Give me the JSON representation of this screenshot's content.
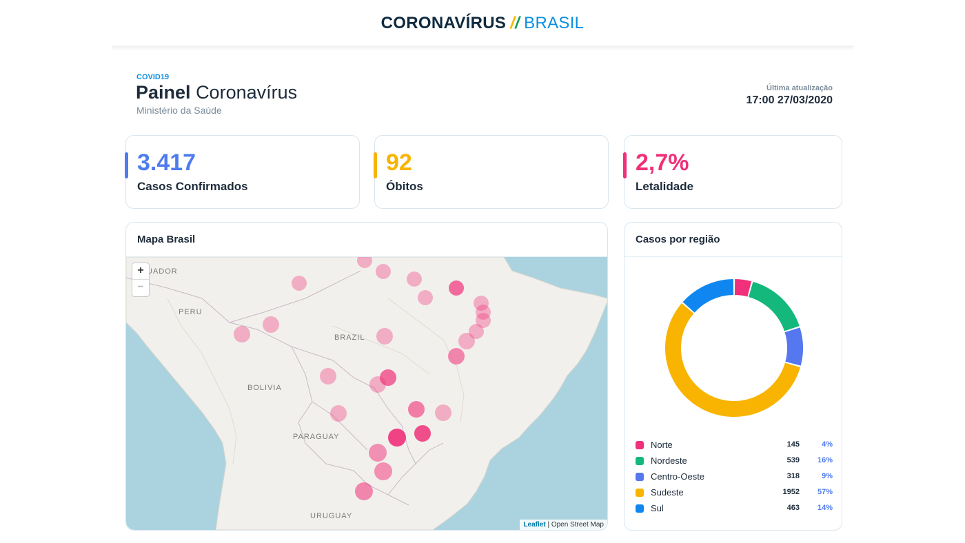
{
  "topbar": {
    "brand_main": "CORONAVÍRUS",
    "brand_region": "BRASIL"
  },
  "header": {
    "tag": "COVID19",
    "title_bold": "Painel",
    "title_rest": "Coronavírus",
    "subtitle": "Ministério da Saúde",
    "update_label": "Última atualização",
    "update_value": "17:00 27/03/2020"
  },
  "stats": [
    {
      "value": "3.417",
      "label": "Casos Confirmados",
      "color": "#4e7bee"
    },
    {
      "value": "92",
      "label": "Óbitos",
      "color": "#f8b400"
    },
    {
      "value": "2,7%",
      "label": "Letalidade",
      "color": "#f0307a"
    }
  ],
  "map": {
    "title": "Mapa Brasil",
    "zoom_in": "+",
    "zoom_out": "−",
    "labels": {
      "ecuador": "UADOR",
      "peru": "PERU",
      "brazil": "BRAZIL",
      "bolivia": "BOLIVIA",
      "paraguay": "PARAGUAY",
      "uruguay": "URUGUAY"
    },
    "attribution_link": "Leaflet",
    "attribution_text": " | Open Street Map",
    "marker_color": "#f0307a"
  },
  "regions": {
    "title": "Casos por região",
    "items": [
      {
        "name": "Norte",
        "count": "145",
        "pct": "4%",
        "value": 145,
        "color": "#f0307a"
      },
      {
        "name": "Nordeste",
        "count": "539",
        "pct": "16%",
        "value": 539,
        "color": "#14b77c"
      },
      {
        "name": "Centro-Oeste",
        "count": "318",
        "pct": "9%",
        "value": 318,
        "color": "#5577f0"
      },
      {
        "name": "Sudeste",
        "count": "1952",
        "pct": "57%",
        "value": 1952,
        "color": "#f8b400"
      },
      {
        "name": "Sul",
        "count": "463",
        "pct": "14%",
        "value": 463,
        "color": "#1087f0"
      }
    ]
  },
  "chart_data": {
    "type": "pie",
    "categories": [
      "Norte",
      "Nordeste",
      "Centro-Oeste",
      "Sudeste",
      "Sul"
    ],
    "values": [
      145,
      539,
      318,
      1952,
      463
    ],
    "title": "Casos por região"
  }
}
